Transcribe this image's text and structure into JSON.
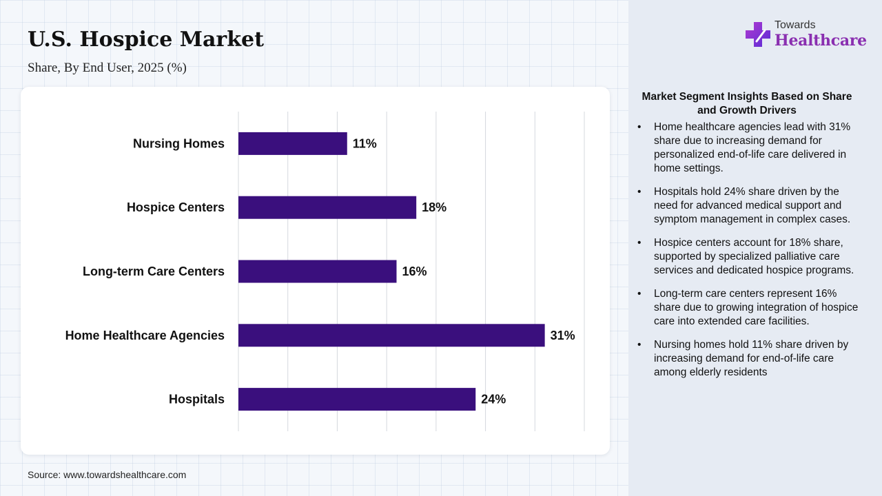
{
  "header": {
    "title": "U.S. Hospice Market",
    "subtitle": "Share, By End User, 2025 (%)"
  },
  "logo": {
    "top": "Towards",
    "main": "Healthcare"
  },
  "colors": {
    "bar": "#3a0f7d",
    "brand": "#8a2fb0",
    "grid": "#d4d8de"
  },
  "chart_data": {
    "type": "bar",
    "orientation": "horizontal",
    "categories": [
      "Nursing Homes",
      "Hospice Centers",
      "Long-term Care Centers",
      "Home Healthcare Agencies",
      "Hospitals"
    ],
    "values": [
      11,
      18,
      16,
      31,
      24
    ],
    "value_labels": [
      "11%",
      "18%",
      "16%",
      "31%",
      "24%"
    ],
    "xlim": [
      0,
      35
    ],
    "grid": true
  },
  "insights": {
    "title": "Market Segment Insights Based on Share and Growth Drivers",
    "bullet": "•",
    "items": [
      "Home healthcare agencies lead with 31% share due to increasing demand for personalized end-of-life care delivered in home settings.",
      "Hospitals hold 24% share driven by the need for advanced medical support and symptom management in complex cases.",
      "Hospice centers account for 18% share, supported by specialized palliative care services and dedicated hospice programs.",
      "Long-term care centers represent 16% share due to growing integration of hospice care into extended care facilities.",
      "Nursing homes hold 11% share driven by increasing demand for end-of-life care among elderly residents"
    ]
  },
  "footer": {
    "source": "Source: www.towardshealthcare.com"
  }
}
